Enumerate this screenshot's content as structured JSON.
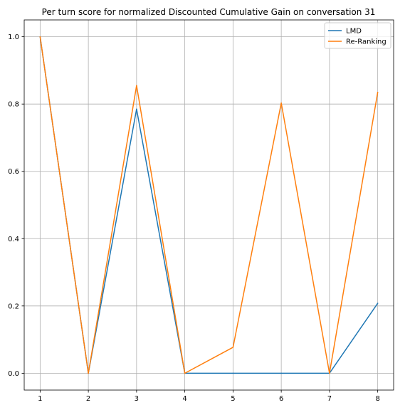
{
  "chart_data": {
    "type": "line",
    "title": "Per turn score for normalized Discounted Cumulative Gain on conversation 31",
    "xlabel": "",
    "ylabel": "",
    "x": [
      1,
      2,
      3,
      4,
      5,
      6,
      7,
      8
    ],
    "xticks": [
      "1",
      "2",
      "3",
      "4",
      "5",
      "6",
      "7",
      "8"
    ],
    "yticks": [
      "0.0",
      "0.2",
      "0.4",
      "0.6",
      "0.8",
      "1.0"
    ],
    "xlim": [
      0.67,
      8.33
    ],
    "ylim": [
      -0.05,
      1.05
    ],
    "grid": true,
    "legend_position": "top-right",
    "series": [
      {
        "name": "LMD",
        "color": "#1f77b4",
        "values": [
          1.0,
          0.0,
          0.785,
          0.0,
          0.0,
          0.0,
          0.0,
          0.208
        ]
      },
      {
        "name": "Re-Ranking",
        "color": "#ff7f0e",
        "values": [
          1.0,
          0.0,
          0.855,
          0.0,
          0.077,
          0.803,
          0.0,
          0.835
        ]
      }
    ]
  }
}
